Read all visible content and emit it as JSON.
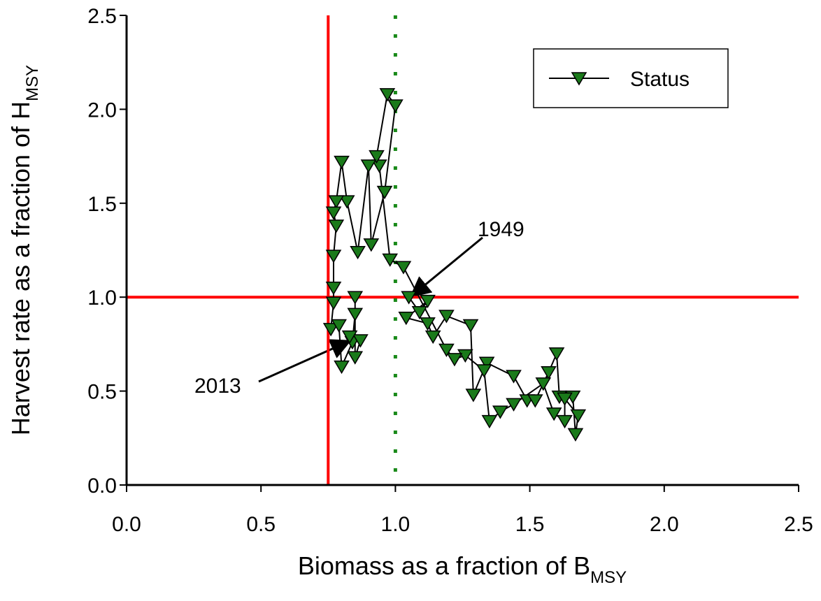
{
  "chart_data": {
    "type": "line",
    "x_label": {
      "text": "Biomass as a fraction of B",
      "subscript": "MSY"
    },
    "y_label": {
      "text": "Harvest rate as a fraction of H",
      "subscript": "MSY"
    },
    "xlim": [
      0,
      2.5
    ],
    "ylim": [
      0,
      2.5
    ],
    "xticks": [
      {
        "value": 0,
        "label": "0.0"
      },
      0.5,
      {
        "value": 1,
        "label": "1.0"
      },
      1.5,
      {
        "value": 2,
        "label": "2.0"
      },
      2.5
    ],
    "yticks": [
      {
        "value": 0,
        "label": "0.0"
      },
      0.5,
      {
        "value": 1,
        "label": "1.0"
      },
      1.5,
      {
        "value": 2,
        "label": "2.0"
      },
      2.5
    ],
    "grid": false,
    "legend": "upper right",
    "reference_lines": [
      {
        "axis": "x",
        "value": 0.75,
        "color": "#ff0000",
        "style": "solid"
      },
      {
        "axis": "y",
        "value": 1.0,
        "color": "#ff0000",
        "style": "solid"
      },
      {
        "axis": "x",
        "value": 1.0,
        "color": "#1a8a1a",
        "style": "dotted"
      }
    ],
    "annotations": [
      {
        "text": "1949"
      },
      {
        "text": "2013"
      }
    ],
    "series": [
      {
        "name": "Status",
        "color": "#1a7a1a",
        "line_color": "#000000",
        "x": [
          1.05,
          1.09,
          1.12,
          1.04,
          1.12,
          1.14,
          1.19,
          1.28,
          1.29,
          1.34,
          1.44,
          1.49,
          1.52,
          1.57,
          1.6,
          1.61,
          1.66,
          1.67,
          1.68,
          1.63,
          1.63,
          1.59,
          1.55,
          1.44,
          1.39,
          1.35,
          1.33,
          1.26,
          1.22,
          1.19,
          1.03,
          0.98,
          0.94,
          0.93,
          0.97,
          1.0,
          0.96,
          0.91,
          0.9,
          0.86,
          0.82,
          0.8,
          0.78,
          0.77,
          0.78,
          0.77,
          0.77,
          0.77,
          0.76,
          0.79,
          0.8,
          0.84,
          0.85,
          0.85,
          0.85,
          0.87,
          0.83
        ],
        "values": [
          1.0,
          0.92,
          0.98,
          0.89,
          0.86,
          0.79,
          0.9,
          0.85,
          0.48,
          0.65,
          0.58,
          0.45,
          0.45,
          0.6,
          0.7,
          0.47,
          0.47,
          0.27,
          0.37,
          0.46,
          0.34,
          0.38,
          0.54,
          0.43,
          0.39,
          0.34,
          0.61,
          0.69,
          0.67,
          0.72,
          1.16,
          1.2,
          1.7,
          1.75,
          2.08,
          2.02,
          1.56,
          1.28,
          1.7,
          1.24,
          1.51,
          1.72,
          1.51,
          1.45,
          1.38,
          1.22,
          1.05,
          0.97,
          0.83,
          0.85,
          0.63,
          0.76,
          0.91,
          1.0,
          0.68,
          0.77,
          0.79
        ]
      }
    ]
  }
}
